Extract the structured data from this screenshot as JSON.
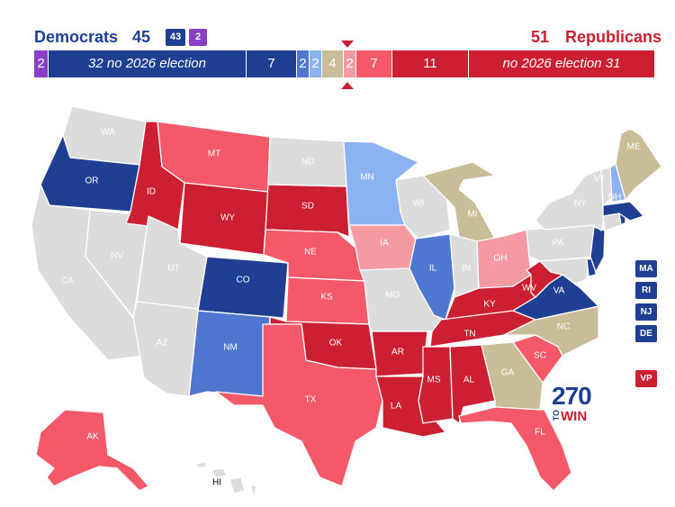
{
  "header": {
    "dem_label": "Democrats",
    "dem_total": "45",
    "dem_held": "43",
    "ind": "2",
    "rep_total": "51",
    "rep_label": "Republicans"
  },
  "colors": {
    "safe_d": "#1f3f93",
    "likely_d": "#4f77cf",
    "lean_d": "#8db2f2",
    "tossup": "#c8bd97",
    "lean_r": "#f59aa2",
    "likely_r": "#f4596a",
    "safe_r": "#cc1f31",
    "independent": "#8a3fc9",
    "no_election": "#dcdcdc"
  },
  "balance_bar": [
    {
      "label": "2",
      "color": "independent",
      "italic": false
    },
    {
      "label": "32 no 2026 election",
      "color": "safe_d",
      "italic": true
    },
    {
      "label": "7",
      "color": "safe_d",
      "italic": false
    },
    {
      "label": "2",
      "color": "likely_d",
      "italic": false
    },
    {
      "label": "2",
      "color": "lean_d",
      "italic": false
    },
    {
      "label": "4",
      "color": "tossup",
      "italic": false
    },
    {
      "label": "2",
      "color": "lean_r",
      "italic": false
    },
    {
      "label": "7",
      "color": "likely_r",
      "italic": false
    },
    {
      "label": "11",
      "color": "safe_r",
      "italic": false
    },
    {
      "label": "no 2026 election 31",
      "color": "safe_r",
      "italic": true
    }
  ],
  "states": [
    {
      "abbr": "WA",
      "rating": "no_election"
    },
    {
      "abbr": "OR",
      "rating": "safe_d"
    },
    {
      "abbr": "CA",
      "rating": "no_election"
    },
    {
      "abbr": "NV",
      "rating": "no_election"
    },
    {
      "abbr": "ID",
      "rating": "safe_r"
    },
    {
      "abbr": "MT",
      "rating": "likely_r"
    },
    {
      "abbr": "WY",
      "rating": "safe_r"
    },
    {
      "abbr": "UT",
      "rating": "no_election"
    },
    {
      "abbr": "AZ",
      "rating": "no_election"
    },
    {
      "abbr": "CO",
      "rating": "safe_d"
    },
    {
      "abbr": "NM",
      "rating": "likely_d"
    },
    {
      "abbr": "ND",
      "rating": "no_election"
    },
    {
      "abbr": "SD",
      "rating": "safe_r"
    },
    {
      "abbr": "NE",
      "rating": "likely_r"
    },
    {
      "abbr": "KS",
      "rating": "likely_r"
    },
    {
      "abbr": "OK",
      "rating": "safe_r"
    },
    {
      "abbr": "TX",
      "rating": "likely_r"
    },
    {
      "abbr": "MN",
      "rating": "lean_d"
    },
    {
      "abbr": "IA",
      "rating": "lean_r"
    },
    {
      "abbr": "MO",
      "rating": "no_election"
    },
    {
      "abbr": "AR",
      "rating": "safe_r"
    },
    {
      "abbr": "LA",
      "rating": "safe_r"
    },
    {
      "abbr": "WI",
      "rating": "no_election"
    },
    {
      "abbr": "IL",
      "rating": "likely_d"
    },
    {
      "abbr": "MI",
      "rating": "tossup"
    },
    {
      "abbr": "IN",
      "rating": "no_election"
    },
    {
      "abbr": "OH",
      "rating": "lean_r"
    },
    {
      "abbr": "KY",
      "rating": "safe_r"
    },
    {
      "abbr": "TN",
      "rating": "safe_r"
    },
    {
      "abbr": "MS",
      "rating": "safe_r"
    },
    {
      "abbr": "AL",
      "rating": "safe_r"
    },
    {
      "abbr": "GA",
      "rating": "tossup"
    },
    {
      "abbr": "FL",
      "rating": "likely_r"
    },
    {
      "abbr": "SC",
      "rating": "likely_r"
    },
    {
      "abbr": "NC",
      "rating": "tossup"
    },
    {
      "abbr": "VA",
      "rating": "safe_d"
    },
    {
      "abbr": "WV",
      "rating": "safe_r"
    },
    {
      "abbr": "PA",
      "rating": "no_election"
    },
    {
      "abbr": "NY",
      "rating": "no_election"
    },
    {
      "abbr": "VT",
      "rating": "no_election"
    },
    {
      "abbr": "NH",
      "rating": "lean_d"
    },
    {
      "abbr": "ME",
      "rating": "tossup"
    },
    {
      "abbr": "MA",
      "rating": "safe_d"
    },
    {
      "abbr": "RI",
      "rating": "safe_d"
    },
    {
      "abbr": "CT",
      "rating": "no_election"
    },
    {
      "abbr": "NJ",
      "rating": "safe_d"
    },
    {
      "abbr": "DE",
      "rating": "safe_d"
    },
    {
      "abbr": "MD",
      "rating": "no_election"
    },
    {
      "abbr": "AK",
      "rating": "likely_r"
    },
    {
      "abbr": "HI",
      "rating": "no_election"
    }
  ],
  "small_states": [
    {
      "abbr": "MA",
      "color": "safe_d"
    },
    {
      "abbr": "RI",
      "color": "safe_d"
    },
    {
      "abbr": "NJ",
      "color": "safe_d"
    },
    {
      "abbr": "DE",
      "color": "safe_d"
    },
    {
      "abbr": "VP",
      "color": "safe_r"
    }
  ],
  "logo": {
    "number": "270",
    "to": "TO",
    "win": "WIN"
  }
}
